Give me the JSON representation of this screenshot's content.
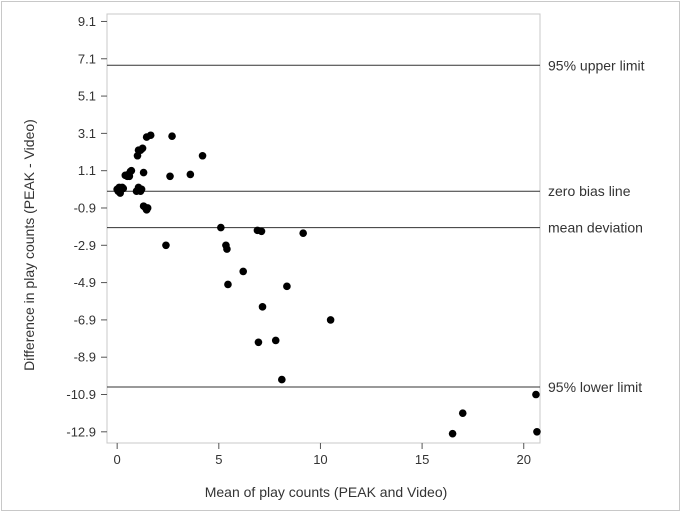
{
  "chart_data": {
    "type": "scatter",
    "xlabel": "Mean of play counts (PEAK and Video)",
    "ylabel": "Difference in play counts (PEAK - Video)",
    "xlim": [
      -0.5,
      20.8
    ],
    "ylim": [
      -13.5,
      9.5
    ],
    "x_ticks": [
      0,
      5,
      10,
      15,
      20
    ],
    "y_ticks": [
      9.1,
      7.1,
      5.1,
      3.1,
      1.1,
      -0.9,
      -2.9,
      -4.9,
      -6.9,
      -8.9,
      -10.9,
      -12.9
    ],
    "grid": false,
    "reference_lines": [
      {
        "label": "95% upper limit",
        "y": 6.75
      },
      {
        "label": "zero bias line",
        "y": 0
      },
      {
        "label": "mean deviation",
        "y": -1.95
      },
      {
        "label": "95% lower limit",
        "y": -10.5
      }
    ],
    "points": [
      {
        "x": 0.0,
        "y": 0.1
      },
      {
        "x": 0.05,
        "y": 0.0
      },
      {
        "x": 0.1,
        "y": 0.2
      },
      {
        "x": 0.15,
        "y": -0.1
      },
      {
        "x": 0.2,
        "y": 0.1
      },
      {
        "x": 0.25,
        "y": 0.2
      },
      {
        "x": 0.3,
        "y": 0.15
      },
      {
        "x": 0.4,
        "y": 0.85
      },
      {
        "x": 0.5,
        "y": 0.8
      },
      {
        "x": 0.55,
        "y": 0.9
      },
      {
        "x": 0.6,
        "y": 0.8
      },
      {
        "x": 0.65,
        "y": 1.05
      },
      {
        "x": 0.7,
        "y": 1.1
      },
      {
        "x": 0.95,
        "y": 0.0
      },
      {
        "x": 1.05,
        "y": 0.2
      },
      {
        "x": 1.15,
        "y": 0.0
      },
      {
        "x": 1.2,
        "y": 0.1
      },
      {
        "x": 1.0,
        "y": 1.9
      },
      {
        "x": 1.05,
        "y": 2.2
      },
      {
        "x": 1.15,
        "y": 2.2
      },
      {
        "x": 1.25,
        "y": 2.3
      },
      {
        "x": 1.3,
        "y": 1.0
      },
      {
        "x": 1.3,
        "y": -0.8
      },
      {
        "x": 1.4,
        "y": -0.9
      },
      {
        "x": 1.45,
        "y": -1.0
      },
      {
        "x": 1.5,
        "y": -0.9
      },
      {
        "x": 1.45,
        "y": 2.9
      },
      {
        "x": 1.65,
        "y": 3.0
      },
      {
        "x": 2.4,
        "y": -2.9
      },
      {
        "x": 2.6,
        "y": 0.8
      },
      {
        "x": 2.7,
        "y": 2.95
      },
      {
        "x": 3.6,
        "y": 0.9
      },
      {
        "x": 4.2,
        "y": 1.9
      },
      {
        "x": 5.1,
        "y": -1.95
      },
      {
        "x": 5.35,
        "y": -2.9
      },
      {
        "x": 5.4,
        "y": -3.1
      },
      {
        "x": 5.45,
        "y": -5.0
      },
      {
        "x": 6.2,
        "y": -4.3
      },
      {
        "x": 6.9,
        "y": -2.1
      },
      {
        "x": 7.1,
        "y": -2.15
      },
      {
        "x": 6.95,
        "y": -8.1
      },
      {
        "x": 7.15,
        "y": -6.2
      },
      {
        "x": 7.8,
        "y": -8.0
      },
      {
        "x": 8.1,
        "y": -10.1
      },
      {
        "x": 8.35,
        "y": -5.1
      },
      {
        "x": 9.15,
        "y": -2.25
      },
      {
        "x": 10.5,
        "y": -6.9
      },
      {
        "x": 16.5,
        "y": -13.0
      },
      {
        "x": 17.0,
        "y": -11.9
      },
      {
        "x": 20.6,
        "y": -10.9
      },
      {
        "x": 20.65,
        "y": -12.9
      }
    ]
  }
}
